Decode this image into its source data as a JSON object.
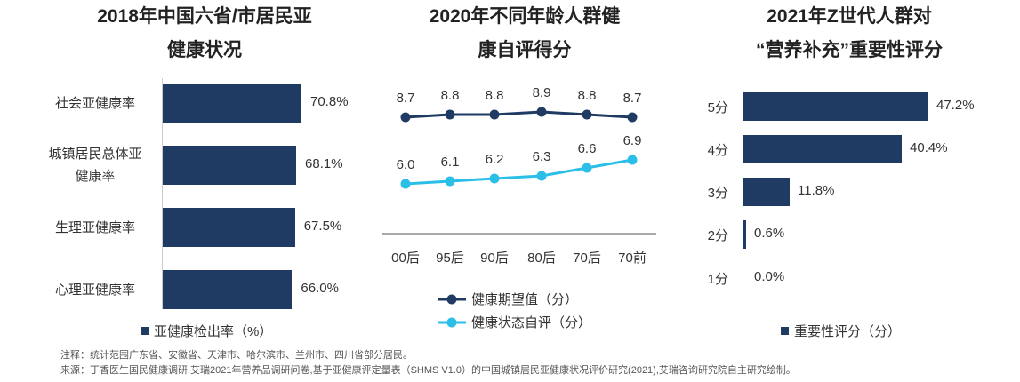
{
  "titles": {
    "left": [
      "2018年中国六省/市居民亚",
      "健康状况"
    ],
    "middle": [
      "2020年不同年龄人群健",
      "康自评得分"
    ],
    "right": [
      "2021年Z世代人群对",
      "“营养补充”重要性评分"
    ]
  },
  "chart_data": [
    {
      "type": "bar",
      "orientation": "horizontal",
      "title": "2018年中国六省/市居民亚健康状况",
      "categories": [
        "社会亚健康率",
        "城镇居民总体亚健康率",
        "生理亚健康率",
        "心理亚健康率"
      ],
      "category_lines": [
        [
          "社会亚健康率"
        ],
        [
          "城镇居民总体亚",
          "健康率"
        ],
        [
          "生理亚健康率"
        ],
        [
          "心理亚健康率"
        ]
      ],
      "series": [
        {
          "name": "亚健康检出率（%）",
          "values": [
            70.8,
            68.1,
            67.5,
            66.0
          ]
        }
      ],
      "value_labels": [
        "70.8%",
        "68.1%",
        "67.5%",
        "66.0%"
      ],
      "color": "#1f3b63"
    },
    {
      "type": "line",
      "title": "2020年不同年龄人群健康自评得分",
      "categories": [
        "00后",
        "95后",
        "90后",
        "80后",
        "70后",
        "70前"
      ],
      "series": [
        {
          "name": "健康期望值（分）",
          "values": [
            8.7,
            8.8,
            8.8,
            8.9,
            8.8,
            8.7
          ],
          "color": "#1f3b63"
        },
        {
          "name": "健康状态自评（分）",
          "values": [
            6.0,
            6.1,
            6.2,
            6.3,
            6.6,
            6.9
          ],
          "color": "#2bbfe8"
        }
      ]
    },
    {
      "type": "bar",
      "orientation": "horizontal",
      "title": "2021年Z世代人群对“营养补充”重要性评分",
      "categories": [
        "5分",
        "4分",
        "3分",
        "2分",
        "1分"
      ],
      "series": [
        {
          "name": "重要性评分（分）",
          "values": [
            47.2,
            40.4,
            11.8,
            0.6,
            0.0
          ]
        }
      ],
      "value_labels": [
        "47.2%",
        "40.4%",
        "11.8%",
        "0.6%",
        "0.0%"
      ],
      "color": "#1f3b63"
    }
  ],
  "legends": {
    "left": "亚健康检出率（%）",
    "middle_1": "健康期望值（分）",
    "middle_2": "健康状态自评（分）",
    "right": "重要性评分（分）"
  },
  "notes": {
    "note": "注释：统计范围广东省、安徽省、天津市、哈尔滨市、兰州市、四川省部分居民。",
    "source": "来源：丁香医生国民健康调研,艾瑞2021年营养品调研问卷,基于亚健康评定量表（SHMS V1.0）的中国城镇居民亚健康状况评价研究(2021),艾瑞咨询研究院自主研究绘制。"
  }
}
